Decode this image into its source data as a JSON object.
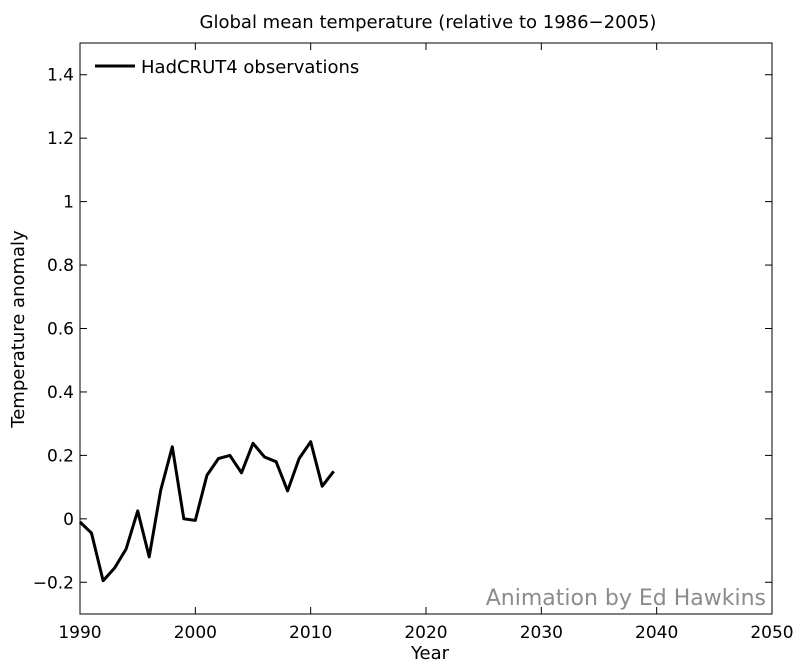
{
  "chart_data": {
    "type": "line",
    "title": "Global mean temperature (relative to 1986−2005)",
    "xlabel": "Year",
    "ylabel": "Temperature anomaly",
    "xlim": [
      1990,
      2050
    ],
    "ylim": [
      -0.3,
      1.5
    ],
    "x_ticks": [
      1990,
      2000,
      2010,
      2020,
      2030,
      2040,
      2050
    ],
    "x_tick_labels": [
      "1990",
      "2000",
      "2010",
      "2020",
      "2030",
      "2040",
      "2050"
    ],
    "y_ticks": [
      -0.2,
      0,
      0.2,
      0.4,
      0.6,
      0.8,
      1,
      1.2,
      1.4
    ],
    "y_tick_labels": [
      "−0.2",
      "0",
      "0.2",
      "0.4",
      "0.6",
      "0.8",
      "1",
      "1.2",
      "1.4"
    ],
    "grid": false,
    "legend_position": "top-left",
    "series": [
      {
        "name": "HadCRUT4 observations",
        "color": "#000000",
        "x": [
          1990,
          1991,
          1992,
          1993,
          1994,
          1995,
          1996,
          1997,
          1998,
          1999,
          2000,
          2001,
          2002,
          2003,
          2004,
          2005,
          2006,
          2007,
          2008,
          2009,
          2010,
          2011,
          2012
        ],
        "y": [
          -0.01,
          -0.045,
          -0.195,
          -0.155,
          -0.095,
          0.025,
          -0.12,
          0.09,
          0.227,
          0.0,
          -0.005,
          0.137,
          0.19,
          0.2,
          0.145,
          0.238,
          0.195,
          0.18,
          0.088,
          0.19,
          0.243,
          0.103,
          0.15
        ]
      }
    ]
  },
  "watermark": "Animation by Ed Hawkins"
}
